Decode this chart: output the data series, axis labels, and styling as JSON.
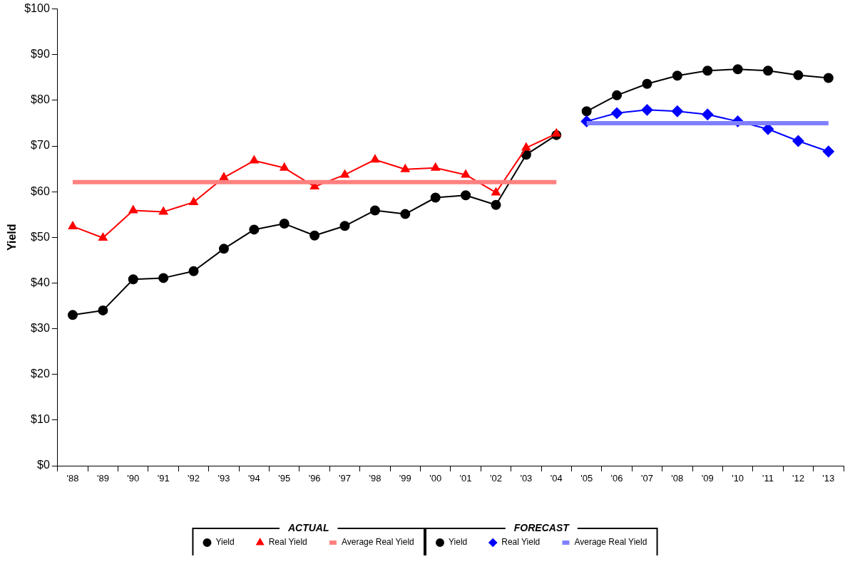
{
  "chart_data": {
    "type": "line",
    "ylabel": "Yield",
    "categories": [
      "'88",
      "'89",
      "'90",
      "'91",
      "'92",
      "'93",
      "'94",
      "'95",
      "'96",
      "'97",
      "'98",
      "'99",
      "'00",
      "'01",
      "'02",
      "'03",
      "'04",
      "'05",
      "'06",
      "'07",
      "'08",
      "'09",
      "'10",
      "'11",
      "'12",
      "'13"
    ],
    "series": [
      {
        "name": "Yield",
        "color": "#000000",
        "marker": "circle",
        "values": [
          33.0,
          34.0,
          40.8,
          41.1,
          42.6,
          47.5,
          51.7,
          53.0,
          50.4,
          52.5,
          55.9,
          55.1,
          58.7,
          59.2,
          57.1,
          68.1,
          72.4,
          null,
          null,
          null,
          null,
          null,
          null,
          null,
          null,
          null
        ]
      },
      {
        "name": "Real Yield",
        "color": "#ff0000",
        "marker": "triangle",
        "values": [
          52.4,
          49.9,
          55.9,
          55.6,
          57.7,
          63.1,
          66.8,
          65.2,
          61.1,
          63.7,
          67.0,
          64.9,
          65.2,
          63.7,
          59.8,
          69.6,
          72.7,
          null,
          null,
          null,
          null,
          null,
          null,
          null,
          null,
          null
        ]
      },
      {
        "name": "Average Real Yield",
        "color": "#ff8080",
        "marker": "none",
        "values": [
          62.1,
          62.1,
          62.1,
          62.1,
          62.1,
          62.1,
          62.1,
          62.1,
          62.1,
          62.1,
          62.1,
          62.1,
          62.1,
          62.1,
          62.1,
          62.1,
          62.1,
          null,
          null,
          null,
          null,
          null,
          null,
          null,
          null,
          null
        ]
      },
      {
        "name": "Yield",
        "color": "#000000",
        "marker": "circle",
        "values": [
          null,
          null,
          null,
          null,
          null,
          null,
          null,
          null,
          null,
          null,
          null,
          null,
          null,
          null,
          null,
          null,
          null,
          77.6,
          81.1,
          83.6,
          85.4,
          86.5,
          86.8,
          86.5,
          85.5,
          84.9
        ]
      },
      {
        "name": "Real Yield",
        "color": "#0000ff",
        "marker": "diamond",
        "values": [
          null,
          null,
          null,
          null,
          null,
          null,
          null,
          null,
          null,
          null,
          null,
          null,
          null,
          null,
          null,
          null,
          null,
          75.4,
          77.2,
          77.9,
          77.6,
          76.9,
          75.4,
          73.7,
          71.1,
          68.8
        ]
      },
      {
        "name": "Average Real Yield",
        "color": "#8080ff",
        "marker": "none",
        "values": [
          null,
          null,
          null,
          null,
          null,
          null,
          null,
          null,
          null,
          null,
          null,
          null,
          null,
          null,
          null,
          null,
          null,
          75.0,
          75.0,
          75.0,
          75.0,
          75.0,
          75.0,
          75.0,
          75.0,
          75.0
        ]
      }
    ],
    "ylim": [
      0,
      100
    ],
    "yticks": [
      {
        "value": 0,
        "label": "$0"
      },
      {
        "value": 10,
        "label": "$10"
      },
      {
        "value": 20,
        "label": "$20"
      },
      {
        "value": 30,
        "label": "$30"
      },
      {
        "value": 40,
        "label": "$40"
      },
      {
        "value": 50,
        "label": "$50"
      },
      {
        "value": 60,
        "label": "$60"
      },
      {
        "value": 70,
        "label": "$70"
      },
      {
        "value": 80,
        "label": "$80"
      },
      {
        "value": 90,
        "label": "$90"
      },
      {
        "value": 100,
        "label": "$100"
      }
    ],
    "grid": false,
    "legend": "bottom",
    "annotations": [
      "ACTUAL",
      "FORECAST"
    ]
  }
}
